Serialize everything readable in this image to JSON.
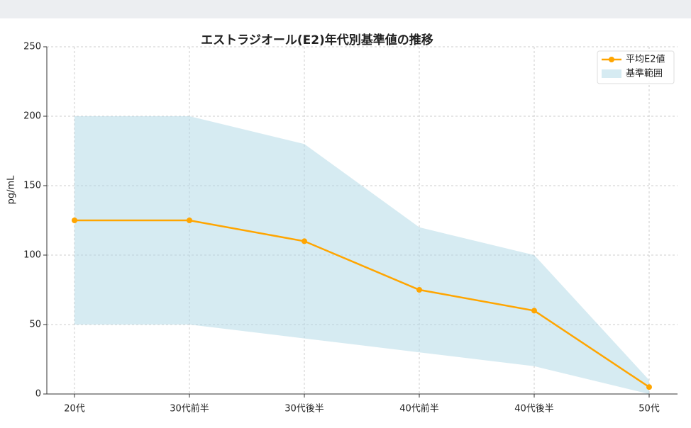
{
  "chart_data": {
    "type": "line",
    "title": "エストラジオール(E2)年代別基準値の推移",
    "y_label": "pg/mL",
    "categories": [
      "20代",
      "30代前半",
      "30代後半",
      "40代前半",
      "40代後半",
      "50代"
    ],
    "series": [
      {
        "name": "平均E2値",
        "color": "#ffa500",
        "values": [
          125,
          125,
          110,
          75,
          60,
          5
        ]
      }
    ],
    "band": {
      "name": "基準範囲",
      "color": "#add8e6",
      "upper": [
        200,
        200,
        180,
        120,
        100,
        10
      ],
      "lower": [
        50,
        50,
        40,
        30,
        20,
        0
      ]
    },
    "ylim": [
      0,
      250
    ],
    "yticks": [
      0,
      50,
      100,
      150,
      200,
      250
    ],
    "grid": true,
    "legend": "upper-right"
  }
}
